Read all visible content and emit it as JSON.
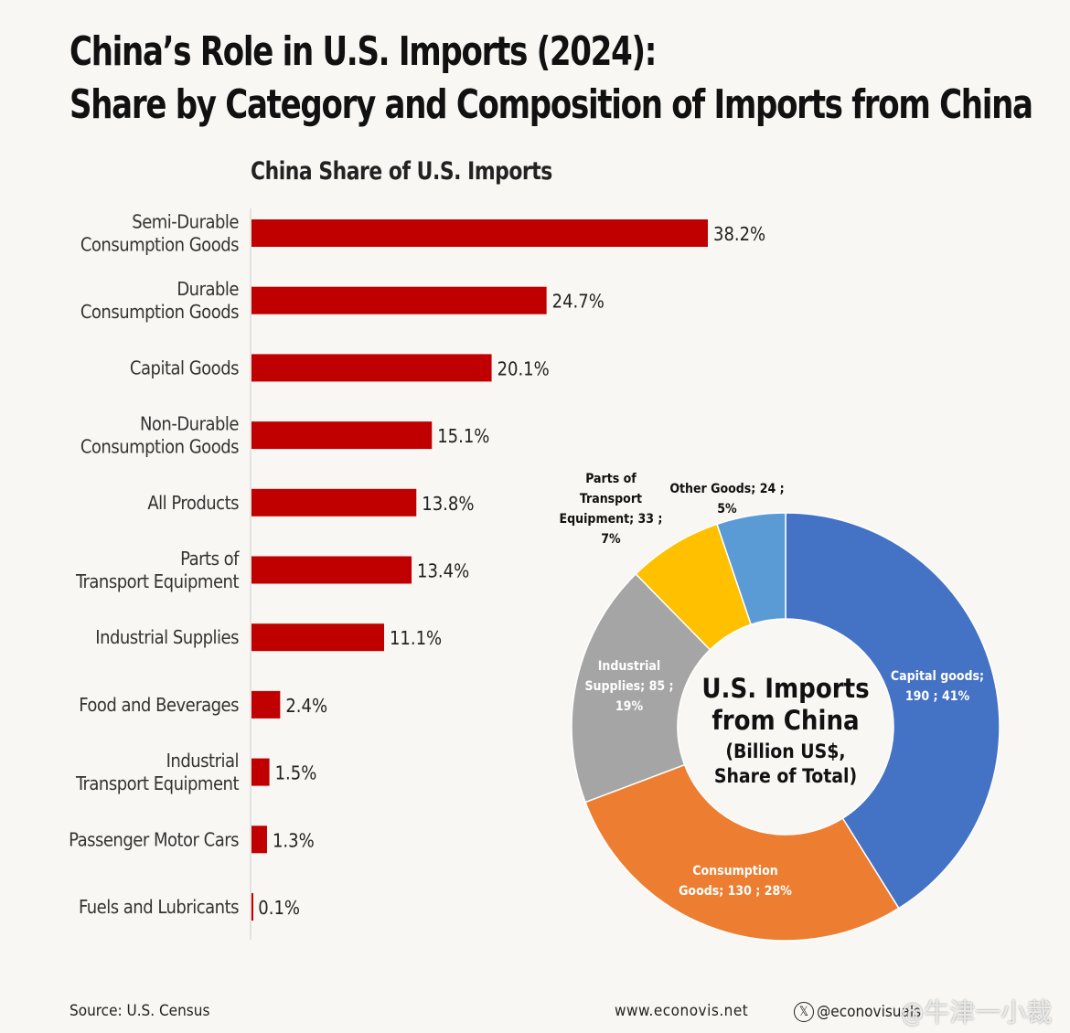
{
  "title_line1": "China’s Role in U.S. Imports (2024):",
  "title_line2": "Share by Category and Composition of Imports from China",
  "chart_data": [
    {
      "type": "bar",
      "orientation": "horizontal",
      "title": "China Share of U.S. Imports",
      "categories": [
        [
          "Semi-Durable",
          "Consumption Goods"
        ],
        [
          "Durable",
          "Consumption Goods"
        ],
        [
          "Capital Goods"
        ],
        [
          "Non-Durable",
          "Consumption Goods"
        ],
        [
          "All Products"
        ],
        [
          "Parts of",
          "Transport Equipment"
        ],
        [
          "Industrial Supplies"
        ],
        [
          "Food and Beverages"
        ],
        [
          "Industrial",
          "Transport Equipment"
        ],
        [
          "Passenger Motor Cars"
        ],
        [
          "Fuels and Lubricants"
        ]
      ],
      "values": [
        38.2,
        24.7,
        20.1,
        15.1,
        13.8,
        13.4,
        11.1,
        2.4,
        1.5,
        1.3,
        0.1
      ],
      "data_labels": [
        "38.2%",
        "24.7%",
        "20.1%",
        "15.1%",
        "13.8%",
        "13.4%",
        "11.1%",
        "2.4%",
        "1.5%",
        "1.3%",
        "0.1%"
      ],
      "unit": "%",
      "color": "#c00000",
      "grid": false
    },
    {
      "type": "pie",
      "donut": true,
      "center_title": [
        "U.S. Imports",
        "from China"
      ],
      "center_subtitle": [
        "(Billion US$,",
        "Share of Total)"
      ],
      "slices": [
        {
          "label": [
            "Capital goods;",
            "190 ; 41%"
          ],
          "value": 190,
          "percent": 41,
          "color": "#4472c4",
          "label_color": "#ffffff"
        },
        {
          "label": [
            "Consumption",
            "Goods; 130 ; 28%"
          ],
          "value": 130,
          "percent": 28,
          "color": "#ed7d31",
          "label_color": "#ffffff"
        },
        {
          "label": [
            "Industrial",
            "Supplies; 85 ;",
            "19%"
          ],
          "value": 85,
          "percent": 19,
          "color": "#a5a5a5",
          "label_color": "#ffffff"
        },
        {
          "label": [
            "Parts of",
            "Transport",
            "Equipment; 33 ;",
            "7%"
          ],
          "value": 33,
          "percent": 7,
          "color": "#ffc000",
          "label_color": "#111111"
        },
        {
          "label": [
            "Other Goods; 24 ;",
            "5%"
          ],
          "value": 24,
          "percent": 5,
          "color": "#5b9bd5",
          "label_color": "#111111"
        }
      ]
    }
  ],
  "footer": {
    "source": "Source: U.S. Census",
    "website": "www.econovis.net",
    "handle": "@econovisuals",
    "x_icon": "x-logo-icon",
    "watermark": "@牛津一小裁缝"
  }
}
